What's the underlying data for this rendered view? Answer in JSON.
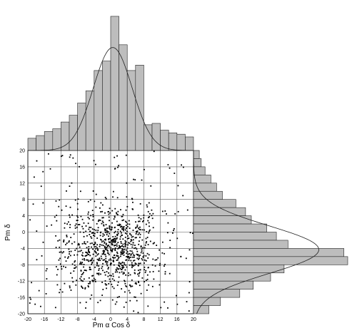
{
  "chart_data": {
    "type": "scatter",
    "title": "",
    "xlabel": "Pm α Cos δ",
    "ylabel": "Pm δ",
    "xlim": [
      -20,
      20
    ],
    "ylim": [
      -20,
      20
    ],
    "xticks": [
      -20,
      -16,
      -12,
      -8,
      -4,
      0,
      4,
      8,
      12,
      16,
      20
    ],
    "yticks": [
      20,
      16,
      12,
      8,
      4,
      0,
      -4,
      -8,
      -12,
      -16,
      -20
    ],
    "grid": true,
    "scatter_points": {
      "count": 1000,
      "x_mean": 0.3,
      "x_sd": 6.0,
      "y_mean": -4.5,
      "y_sd": 5.5,
      "color": "#000000"
    },
    "top_histogram": {
      "bin_width": 2,
      "bin_edges": [
        -20,
        -18,
        -16,
        -14,
        -12,
        -10,
        -8,
        -6,
        -4,
        -2,
        0,
        2,
        4,
        6,
        8,
        10,
        12,
        14,
        16,
        18,
        20
      ],
      "counts": [
        9,
        11,
        14,
        16,
        21,
        26,
        35,
        44,
        59,
        66,
        99,
        78,
        59,
        63,
        19,
        20,
        15,
        13,
        12,
        10
      ],
      "curve": {
        "mean": 0.5,
        "sd": 4.7,
        "peak": 76
      },
      "fill": "#bdbdbd"
    },
    "right_histogram": {
      "bin_width": 2,
      "bin_edges": [
        20,
        18,
        16,
        14,
        12,
        10,
        8,
        6,
        4,
        2,
        0,
        -2,
        -4,
        -6,
        -8,
        -10,
        -12,
        -14,
        -16,
        -18,
        -20
      ],
      "counts": [
        3,
        4,
        6,
        9,
        12,
        15,
        22,
        27,
        30,
        38,
        43,
        49,
        78,
        80,
        47,
        40,
        31,
        24,
        14,
        8
      ],
      "curve": {
        "mean": -4.3,
        "sd": 5.8,
        "peak": 65
      },
      "fill": "#bdbdbd"
    }
  }
}
